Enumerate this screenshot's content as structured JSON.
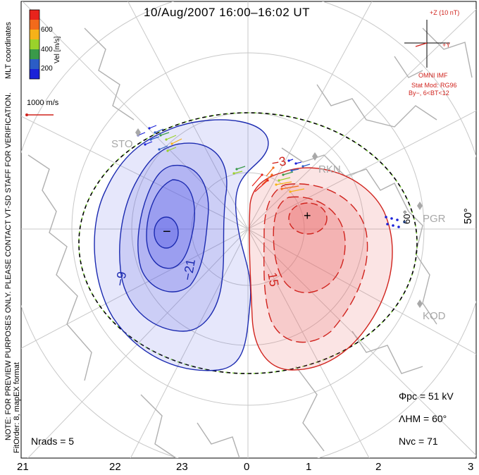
{
  "title": "10/Aug/2007 16:00–16:02 UT",
  "colorbar": {
    "unit_label": "Vel [m/s]",
    "ticks": [
      "600",
      "400",
      "200"
    ],
    "colors": [
      "#e8231c",
      "#f26a1b",
      "#f6b219",
      "#9ad22b",
      "#3a9a4a",
      "#2b5dc6",
      "#1a22d8"
    ]
  },
  "side_label_top": "MLT coordinates",
  "scale_label": "1000 m/s",
  "left_note": "NOTE: FOR PREVIEW PURPOSES ONLY. PLEASE CONTACT VT-SD STAFF FOR VERIFICATION.",
  "left_note2": "FitOrder: 8, mapEX format",
  "imf": {
    "z_label": "+Z (10 nT)",
    "y_label": "+Y",
    "source": "OMNI IMF",
    "model_line1": "Stat Mod: RG96",
    "model_line2": "By−, 6<BT<12",
    "color": "#d0231d"
  },
  "radars": [
    "STO",
    "RKN",
    "PGR",
    "KOD"
  ],
  "lat_labels": [
    "60°",
    "50°"
  ],
  "contour_labels": {
    "neg": [
      "−9",
      "−21"
    ],
    "pos": [
      "15",
      "−3"
    ]
  },
  "extrema": {
    "min": "−",
    "max": "+"
  },
  "stats": {
    "phi_pc": "Φpc = 51 kV",
    "lambda_hm": "ΛHM = 60°",
    "n_vc": "Nvc = 71",
    "n_rads": "Nrads = 5"
  },
  "mlt_ticks": [
    "21",
    "22",
    "23",
    "0",
    "1",
    "2",
    "3"
  ],
  "colors": {
    "neg_fill": "#5a5ee6",
    "pos_fill": "#ea6a6a",
    "neg_line": "#1b2ab0",
    "pos_line": "#d0231d",
    "coast": "#b0b0b0"
  }
}
